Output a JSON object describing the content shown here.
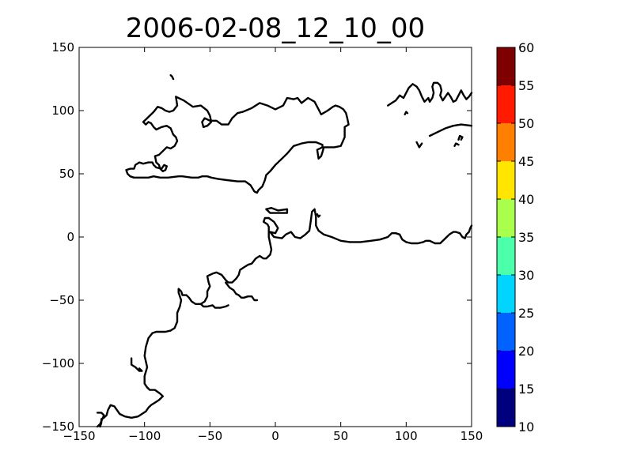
{
  "chart_data": {
    "type": "heatmap",
    "title": "2006-02-08_12_10_00",
    "xlabel": "",
    "ylabel": "",
    "xlim": [
      -150,
      150
    ],
    "ylim": [
      -150,
      150
    ],
    "x_ticks": [
      -150,
      -100,
      -50,
      0,
      50,
      100,
      150
    ],
    "y_ticks": [
      -150,
      -100,
      -50,
      0,
      50,
      100,
      150
    ],
    "x_tick_labels": [
      "−150",
      "−100",
      "−50",
      "0",
      "50",
      "100",
      "150"
    ],
    "y_tick_labels": [
      "−150",
      "−100",
      "−50",
      "0",
      "50",
      "100",
      "150"
    ],
    "grid": false,
    "field_values": [],
    "colorbar": {
      "levels": [
        10,
        15,
        20,
        25,
        30,
        35,
        40,
        45,
        50,
        55,
        60
      ],
      "tick_labels": [
        "10",
        "15",
        "20",
        "25",
        "30",
        "35",
        "40",
        "45",
        "50",
        "55",
        "60"
      ],
      "colors": [
        "#00007f",
        "#0000ff",
        "#0063ff",
        "#00d4ff",
        "#4cffaa",
        "#aaff4c",
        "#ffe500",
        "#ff7f00",
        "#ff1a00",
        "#7f0000"
      ]
    },
    "coastlines": [
      [
        [
          -76,
          111
        ],
        [
          -70,
          108
        ],
        [
          -63,
          103
        ],
        [
          -57,
          104
        ],
        [
          -52,
          100
        ],
        [
          -50,
          96
        ],
        [
          -49,
          91
        ],
        [
          -52,
          88
        ],
        [
          -55,
          87
        ],
        [
          -56,
          91
        ],
        [
          -54,
          94
        ],
        [
          -50,
          92
        ],
        [
          -45,
          92
        ],
        [
          -41,
          89
        ],
        [
          -36,
          89
        ],
        [
          -33,
          94
        ],
        [
          -29,
          98
        ],
        [
          -25,
          99
        ],
        [
          -18,
          102
        ],
        [
          -12,
          106
        ],
        [
          -6,
          104
        ],
        [
          0,
          101
        ],
        [
          6,
          104
        ],
        [
          9,
          110
        ],
        [
          14,
          109
        ],
        [
          17,
          110
        ],
        [
          20,
          106
        ],
        [
          25,
          110
        ],
        [
          30,
          107
        ],
        [
          33,
          101
        ],
        [
          35,
          97
        ],
        [
          40,
          100
        ],
        [
          44,
          103
        ],
        [
          46,
          104
        ],
        [
          49,
          103
        ],
        [
          52,
          101
        ],
        [
          54,
          98
        ],
        [
          55,
          94
        ],
        [
          56,
          89
        ],
        [
          53,
          87
        ],
        [
          53,
          79
        ],
        [
          50,
          72
        ],
        [
          45,
          71
        ],
        [
          37,
          71
        ],
        [
          36,
          67
        ],
        [
          35,
          64
        ],
        [
          33,
          62
        ],
        [
          32,
          69
        ],
        [
          36,
          71
        ],
        [
          36,
          73
        ],
        [
          31,
          75
        ],
        [
          25,
          75
        ],
        [
          20,
          74
        ],
        [
          14,
          72
        ],
        [
          9,
          66
        ],
        [
          5,
          62
        ],
        [
          0,
          57
        ],
        [
          -4,
          52
        ],
        [
          -7,
          49
        ],
        [
          -8,
          45
        ],
        [
          -10,
          40
        ],
        [
          -13,
          37
        ],
        [
          -14,
          35
        ],
        [
          -16,
          36
        ],
        [
          -19,
          41
        ],
        [
          -23,
          44
        ],
        [
          -29,
          44
        ],
        [
          -37,
          45
        ],
        [
          -44,
          46
        ],
        [
          -49,
          47
        ],
        [
          -52,
          48
        ],
        [
          -56,
          48
        ],
        [
          -59,
          47
        ],
        [
          -64,
          47
        ],
        [
          -71,
          48
        ],
        [
          -74,
          48
        ],
        [
          -82,
          47
        ],
        [
          -88,
          47
        ],
        [
          -93,
          48
        ],
        [
          -97,
          47
        ],
        [
          -103,
          47
        ],
        [
          -108,
          47
        ],
        [
          -111,
          48
        ],
        [
          -113,
          50
        ],
        [
          -114,
          53
        ],
        [
          -111,
          54
        ],
        [
          -108,
          54
        ],
        [
          -107,
          57
        ],
        [
          -104,
          59
        ],
        [
          -101,
          58
        ],
        [
          -97,
          59
        ],
        [
          -94,
          59
        ],
        [
          -93,
          57
        ],
        [
          -91,
          55
        ],
        [
          -87,
          54
        ],
        [
          -85,
          57
        ],
        [
          -83,
          56
        ],
        [
          -84,
          53
        ],
        [
          -86,
          52
        ],
        [
          -88,
          54
        ],
        [
          -89,
          57
        ],
        [
          -91,
          59
        ],
        [
          -92,
          64
        ],
        [
          -89,
          65
        ],
        [
          -87,
          67
        ],
        [
          -83,
          71
        ],
        [
          -80,
          70
        ],
        [
          -77,
          72
        ],
        [
          -75,
          76
        ],
        [
          -76,
          79
        ],
        [
          -78,
          81
        ],
        [
          -80,
          86
        ],
        [
          -83,
          88
        ],
        [
          -87,
          87
        ],
        [
          -91,
          85
        ],
        [
          -93,
          87
        ],
        [
          -95,
          90
        ],
        [
          -97,
          91
        ],
        [
          -99,
          89
        ],
        [
          -101,
          91
        ],
        [
          -98,
          94
        ],
        [
          -96,
          96
        ],
        [
          -93,
          99
        ],
        [
          -90,
          103
        ],
        [
          -87,
          102
        ],
        [
          -84,
          100
        ],
        [
          -81,
          99
        ],
        [
          -78,
          100
        ],
        [
          -75,
          104
        ],
        [
          -76,
          111
        ]
      ],
      [
        [
          86,
          104
        ],
        [
          89,
          106
        ],
        [
          92,
          108
        ],
        [
          95,
          112
        ],
        [
          98,
          110
        ],
        [
          100,
          114
        ],
        [
          102,
          118
        ],
        [
          105,
          121
        ],
        [
          108,
          119
        ],
        [
          110,
          116
        ],
        [
          112,
          111
        ],
        [
          114,
          107
        ],
        [
          117,
          110
        ],
        [
          118,
          107
        ],
        [
          120,
          110
        ],
        [
          121,
          114
        ],
        [
          120,
          119
        ],
        [
          121,
          122
        ],
        [
          124,
          122
        ],
        [
          126,
          120
        ],
        [
          127,
          116
        ],
        [
          126,
          112
        ],
        [
          128,
          108
        ],
        [
          130,
          111
        ],
        [
          132,
          114
        ],
        [
          134,
          111
        ],
        [
          136,
          107
        ],
        [
          138,
          108
        ],
        [
          140,
          112
        ],
        [
          142,
          116
        ],
        [
          144,
          112
        ],
        [
          146,
          109
        ],
        [
          148,
          111
        ],
        [
          150,
          114
        ]
      ],
      [
        [
          118,
          80
        ],
        [
          124,
          83
        ],
        [
          130,
          86
        ],
        [
          136,
          88
        ],
        [
          142,
          89
        ],
        [
          150,
          88
        ]
      ],
      [
        [
          -7,
          22
        ],
        [
          -3,
          23
        ],
        [
          2,
          21
        ],
        [
          9,
          22
        ],
        [
          9,
          19
        ],
        [
          3,
          19
        ],
        [
          -4,
          19
        ],
        [
          -7,
          22
        ]
      ],
      [
        [
          -5,
          15
        ],
        [
          -1,
          12
        ],
        [
          2,
          7
        ],
        [
          0,
          3
        ],
        [
          -4,
          4
        ],
        [
          -1,
          0
        ],
        [
          5,
          -1
        ],
        [
          8,
          2
        ],
        [
          12,
          4
        ],
        [
          15,
          0
        ],
        [
          19,
          -1
        ],
        [
          23,
          2
        ],
        [
          26,
          5
        ],
        [
          27,
          12
        ],
        [
          28,
          20
        ],
        [
          30,
          22
        ],
        [
          31,
          16
        ],
        [
          31,
          9
        ],
        [
          33,
          5
        ],
        [
          37,
          2
        ],
        [
          43,
          0
        ],
        [
          50,
          -3
        ],
        [
          57,
          -4
        ],
        [
          65,
          -4
        ],
        [
          73,
          -3
        ],
        [
          80,
          -2
        ],
        [
          86,
          0
        ],
        [
          89,
          3
        ],
        [
          92,
          3
        ],
        [
          95,
          2
        ],
        [
          96,
          0
        ],
        [
          97,
          -2
        ],
        [
          100,
          -4
        ],
        [
          104,
          -5
        ],
        [
          109,
          -5
        ],
        [
          113,
          -4
        ],
        [
          115,
          -3
        ],
        [
          118,
          -3
        ],
        [
          120,
          -4
        ],
        [
          122,
          -5
        ],
        [
          126,
          -5
        ],
        [
          129,
          -2
        ],
        [
          131,
          0
        ],
        [
          133,
          2
        ],
        [
          136,
          4
        ],
        [
          138,
          4
        ],
        [
          141,
          3
        ],
        [
          143,
          0
        ],
        [
          145,
          -1
        ],
        [
          146,
          2
        ],
        [
          148,
          4
        ],
        [
          149,
          7
        ],
        [
          150,
          9
        ]
      ],
      [
        [
          -5,
          15
        ],
        [
          -8,
          15
        ],
        [
          -9,
          12
        ],
        [
          -6,
          10
        ],
        [
          -5,
          8
        ],
        [
          -5,
          0
        ],
        [
          -4,
          -5
        ],
        [
          -3,
          -10
        ],
        [
          -4,
          -14
        ],
        [
          -7,
          -17
        ],
        [
          -9,
          -17
        ],
        [
          -12,
          -15
        ],
        [
          -15,
          -17
        ],
        [
          -18,
          -21
        ],
        [
          -21,
          -22
        ],
        [
          -24,
          -24
        ],
        [
          -27,
          -26
        ],
        [
          -28,
          -30
        ],
        [
          -30,
          -33
        ],
        [
          -33,
          -36
        ],
        [
          -36,
          -36
        ],
        [
          -38,
          -34
        ],
        [
          -41,
          -30
        ],
        [
          -45,
          -28
        ],
        [
          -48,
          -29
        ],
        [
          -52,
          -31
        ],
        [
          -51,
          -36
        ],
        [
          -50,
          -39
        ],
        [
          -52,
          -43
        ],
        [
          -52,
          -47
        ],
        [
          -54,
          -51
        ],
        [
          -57,
          -53
        ],
        [
          -61,
          -53
        ],
        [
          -64,
          -51
        ],
        [
          -66,
          -48
        ],
        [
          -68,
          -46
        ],
        [
          -71,
          -46
        ],
        [
          -72,
          -43
        ],
        [
          -74,
          -41
        ],
        [
          -74,
          -44
        ],
        [
          -72,
          -50
        ],
        [
          -73,
          -55
        ],
        [
          -75,
          -60
        ],
        [
          -75,
          -67
        ],
        [
          -77,
          -72
        ],
        [
          -80,
          -74
        ],
        [
          -84,
          -75
        ],
        [
          -88,
          -75
        ],
        [
          -91,
          -75
        ],
        [
          -94,
          -76
        ],
        [
          -97,
          -80
        ],
        [
          -99,
          -87
        ],
        [
          -100,
          -94
        ],
        [
          -98,
          -103
        ],
        [
          -100,
          -110
        ],
        [
          -100,
          -116
        ],
        [
          -98,
          -119
        ],
        [
          -96,
          -121
        ],
        [
          -92,
          -121
        ],
        [
          -88,
          -124
        ],
        [
          -86,
          -126
        ],
        [
          -89,
          -129
        ],
        [
          -92,
          -131
        ],
        [
          -95,
          -133
        ],
        [
          -97,
          -135
        ],
        [
          -99,
          -138
        ],
        [
          -102,
          -140
        ],
        [
          -105,
          -142
        ],
        [
          -110,
          -143
        ],
        [
          -115,
          -142
        ],
        [
          -119,
          -140
        ],
        [
          -121,
          -137
        ],
        [
          -123,
          -134
        ],
        [
          -126,
          -133
        ],
        [
          -128,
          -137
        ],
        [
          -129,
          -141
        ],
        [
          -131,
          -143
        ],
        [
          -133,
          -144
        ],
        [
          -133,
          -147
        ],
        [
          -134,
          -150
        ]
      ],
      [
        [
          -38,
          -36
        ],
        [
          -35,
          -40
        ],
        [
          -32,
          -42
        ],
        [
          -30,
          -45
        ],
        [
          -28,
          -46
        ],
        [
          -26,
          -48
        ],
        [
          -24,
          -48
        ],
        [
          -21,
          -47
        ],
        [
          -18,
          -47
        ],
        [
          -16,
          -50
        ],
        [
          -14,
          -50
        ]
      ],
      [
        [
          -57,
          -53
        ],
        [
          -55,
          -55
        ],
        [
          -52,
          -55
        ],
        [
          -48,
          -54
        ],
        [
          -46,
          -56
        ],
        [
          -42,
          -56
        ],
        [
          -38,
          -55
        ],
        [
          -36,
          -54
        ]
      ],
      [
        [
          -110,
          -96
        ],
        [
          -110,
          -101
        ],
        [
          -107,
          -103
        ],
        [
          -104,
          -106
        ],
        [
          -102,
          -106
        ],
        [
          -104,
          -104
        ]
      ],
      [
        [
          -78,
          125
        ],
        [
          -79,
          127
        ],
        [
          -80,
          128
        ]
      ],
      [
        [
          -136,
          -150
        ],
        [
          -134,
          -148
        ],
        [
          -131,
          -141
        ],
        [
          -133,
          -139
        ],
        [
          -136,
          -139
        ]
      ],
      [
        [
          32,
          18
        ],
        [
          33,
          16
        ],
        [
          34,
          17
        ]
      ],
      [
        [
          99,
          97
        ],
        [
          100,
          99
        ],
        [
          101,
          98
        ]
      ],
      [
        [
          137,
          72
        ],
        [
          138,
          74
        ],
        [
          140,
          73
        ]
      ],
      [
        [
          108,
          75
        ],
        [
          110,
          71
        ],
        [
          112,
          74
        ]
      ],
      [
        [
          140,
          77
        ],
        [
          141,
          80
        ],
        [
          143,
          79
        ],
        [
          142,
          77
        ]
      ]
    ]
  }
}
